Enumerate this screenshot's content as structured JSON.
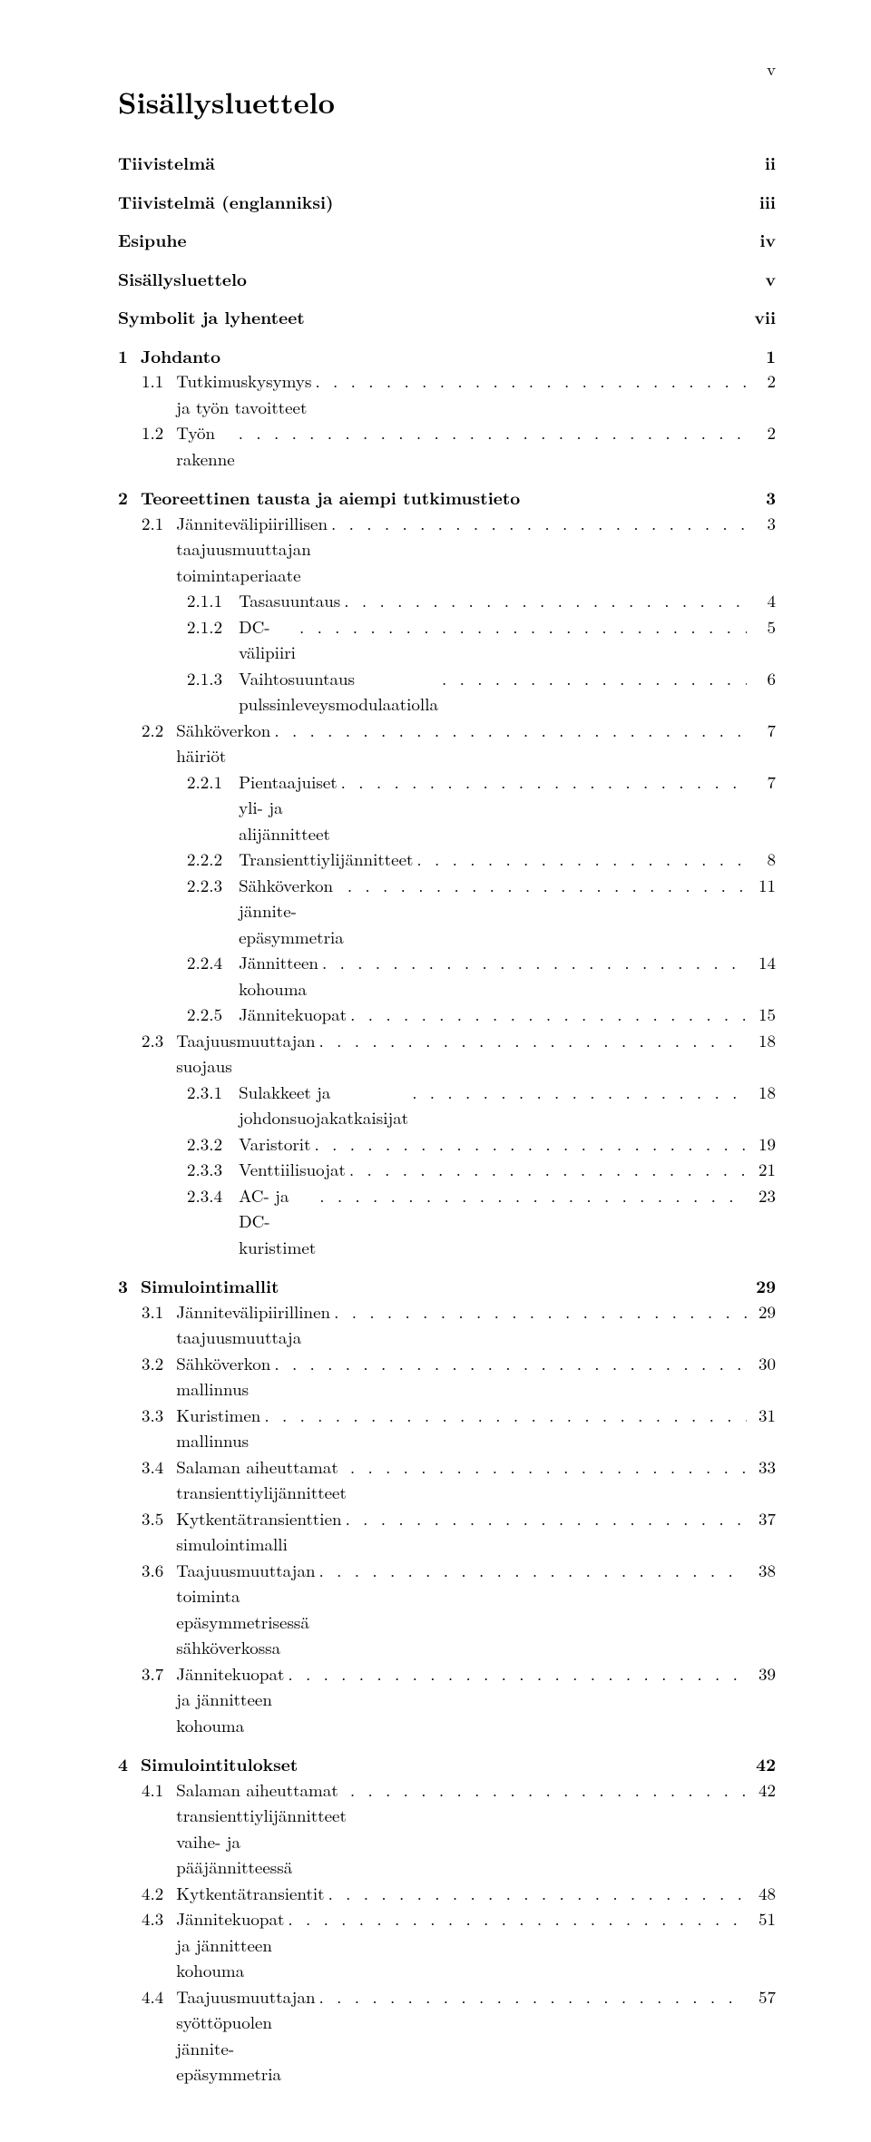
{
  "page_number_top": "v",
  "title": "Sisällysluettelo",
  "front_matter": [
    {
      "label": "Tiivistelmä",
      "page": "ii"
    },
    {
      "label": "Tiivistelmä (englanniksi)",
      "page": "iii"
    },
    {
      "label": "Esipuhe",
      "page": "iv"
    },
    {
      "label": "Sisällysluettelo",
      "page": "v"
    },
    {
      "label": "Symbolit ja lyhenteet",
      "page": "vii"
    }
  ],
  "chapters": [
    {
      "num": "1",
      "label": "Johdanto",
      "page": "1",
      "sections": [
        {
          "num": "1.1",
          "label": "Tutkimuskysymys ja työn tavoitteet",
          "page": "2"
        },
        {
          "num": "1.2",
          "label": "Työn rakenne",
          "page": "2"
        }
      ]
    },
    {
      "num": "2",
      "label": "Teoreettinen tausta ja aiempi tutkimustieto",
      "page": "3",
      "sections": [
        {
          "num": "2.1",
          "label": "Jännitevälipiirillisen taajuusmuuttajan toimintaperiaate",
          "page": "3",
          "subsections": [
            {
              "num": "2.1.1",
              "label": "Tasasuuntaus",
              "page": "4"
            },
            {
              "num": "2.1.2",
              "label": "DC-välipiiri",
              "page": "5"
            },
            {
              "num": "2.1.3",
              "label": "Vaihtosuuntaus pulssinleveysmodulaatiolla",
              "page": "6"
            }
          ]
        },
        {
          "num": "2.2",
          "label": "Sähköverkon häiriöt",
          "page": "7",
          "subsections": [
            {
              "num": "2.2.1",
              "label": "Pientaajuiset yli- ja alijännitteet",
              "page": "7"
            },
            {
              "num": "2.2.2",
              "label": "Transienttiylijännitteet",
              "page": "8"
            },
            {
              "num": "2.2.3",
              "label": "Sähköverkon jännite-epäsymmetria",
              "page": "11"
            },
            {
              "num": "2.2.4",
              "label": "Jännitteen kohouma",
              "page": "14"
            },
            {
              "num": "2.2.5",
              "label": "Jännitekuopat",
              "page": "15"
            }
          ]
        },
        {
          "num": "2.3",
          "label": "Taajuusmuuttajan suojaus",
          "page": "18",
          "subsections": [
            {
              "num": "2.3.1",
              "label": "Sulakkeet ja johdonsuojakatkaisijat",
              "page": "18"
            },
            {
              "num": "2.3.2",
              "label": "Varistorit",
              "page": "19"
            },
            {
              "num": "2.3.3",
              "label": "Venttiilisuojat",
              "page": "21"
            },
            {
              "num": "2.3.4",
              "label": "AC- ja DC-kuristimet",
              "page": "23"
            }
          ]
        }
      ]
    },
    {
      "num": "3",
      "label": "Simulointimallit",
      "page": "29",
      "sections": [
        {
          "num": "3.1",
          "label": "Jännitevälipiirillinen taajuusmuuttaja",
          "page": "29"
        },
        {
          "num": "3.2",
          "label": "Sähköverkon mallinnus",
          "page": "30"
        },
        {
          "num": "3.3",
          "label": "Kuristimen mallinnus",
          "page": "31"
        },
        {
          "num": "3.4",
          "label": "Salaman aiheuttamat transienttiylijännitteet",
          "page": "33"
        },
        {
          "num": "3.5",
          "label": "Kytkentätransienttien simulointimalli",
          "page": "37"
        },
        {
          "num": "3.6",
          "label": "Taajuusmuuttajan toiminta epäsymmetrisessä sähköverkossa",
          "page": "38"
        },
        {
          "num": "3.7",
          "label": "Jännitekuopat ja jännitteen kohouma",
          "page": "39"
        }
      ]
    },
    {
      "num": "4",
      "label": "Simulointitulokset",
      "page": "42",
      "sections": [
        {
          "num": "4.1",
          "label": "Salaman aiheuttamat transienttiylijännitteet vaihe- ja pääjännitteessä",
          "page": "42"
        },
        {
          "num": "4.2",
          "label": "Kytkentätransientit",
          "page": "48"
        },
        {
          "num": "4.3",
          "label": "Jännitekuopat ja jännitteen kohouma",
          "page": "51"
        },
        {
          "num": "4.4",
          "label": "Taajuusmuuttajan syöttöpuolen jännite-epäsymmetria",
          "page": "57"
        }
      ]
    }
  ]
}
